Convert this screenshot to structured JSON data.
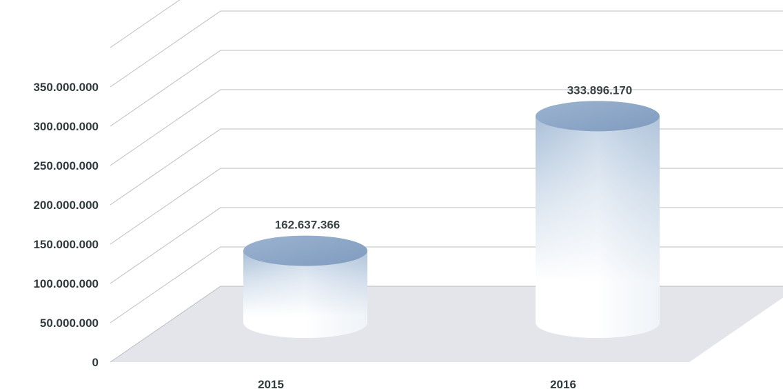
{
  "chart_data": {
    "type": "bar",
    "style": "3d-cylinder",
    "categories": [
      "2015",
      "2016"
    ],
    "series": [
      {
        "values": [
          162637366,
          333896170
        ],
        "value_labels": [
          "162.637.366",
          "333.896.170"
        ]
      }
    ],
    "ylim": [
      0,
      350000000
    ],
    "y_ticks": [
      0,
      50000000,
      100000000,
      150000000,
      200000000,
      250000000,
      300000000,
      350000000
    ],
    "y_tick_labels": [
      "0",
      "50.000.000",
      "100.000.000",
      "150.000.000",
      "200.000.000",
      "250.000.000",
      "300.000.000",
      "350.000.000"
    ],
    "grid": true,
    "legend": "none",
    "colors": {
      "bar_top": "#8ea8c8",
      "bar_side_dark": "#a9bfd8",
      "bar_side_light": "#ffffff",
      "floor": "#e3e5ea",
      "grid": "#b9bcc0",
      "text": "#2e3a3c"
    }
  }
}
